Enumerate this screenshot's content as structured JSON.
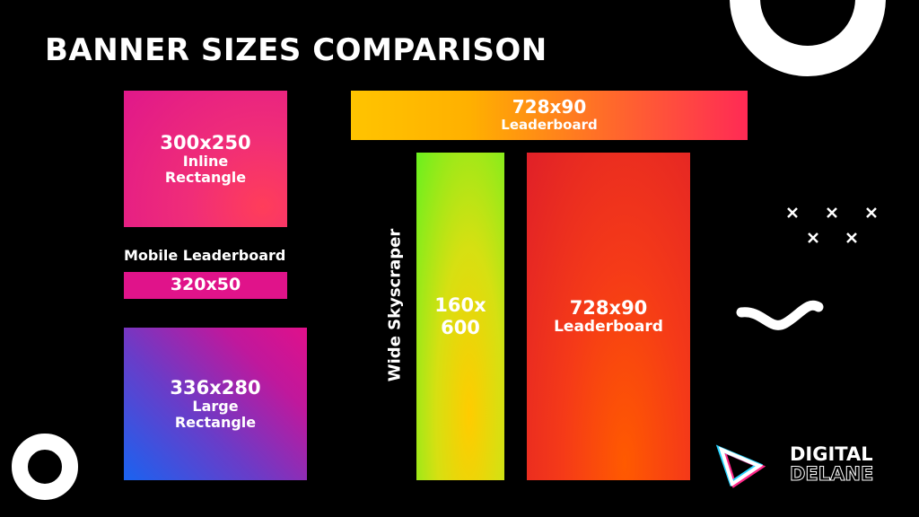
{
  "title": "BANNER SIZES COMPARISON",
  "banners": [
    {
      "lines": [
        "300x250",
        "Inline",
        "Rectangle"
      ]
    },
    {
      "caption": "Mobile Leaderboard",
      "lines": [
        "320x50"
      ]
    },
    {
      "lines": [
        "336x280",
        "Large",
        "Rectangle"
      ]
    },
    {
      "lines": [
        "728x90",
        "Leaderboard"
      ]
    },
    {
      "caption": "Wide Skyscraper",
      "lines": [
        "160x",
        "600"
      ]
    },
    {
      "lines": [
        "728x90",
        "Leaderboard"
      ]
    }
  ],
  "logo": {
    "line1": "DIGITAL",
    "line2": "DELANE"
  }
}
